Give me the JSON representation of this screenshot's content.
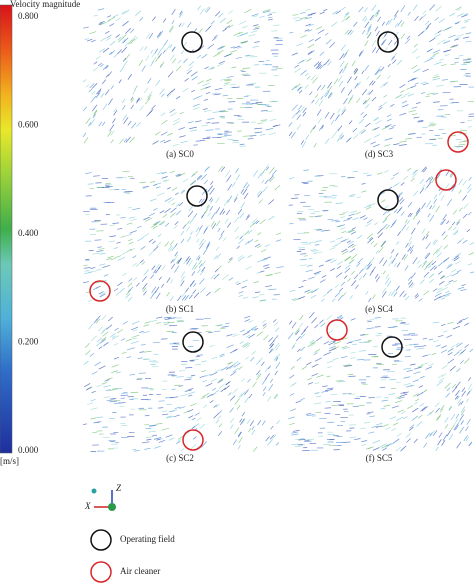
{
  "colorbar": {
    "title": "Velocity magnitude",
    "unit": "[m/s]",
    "ticks": [
      "0.800",
      "0.600",
      "0.400",
      "0.200",
      "0.000"
    ]
  },
  "panels": [
    "(a) SC0",
    "(d) SC3",
    "(b) SC1",
    "(e) SC4",
    "(c) SC2",
    "(f) SC5"
  ],
  "axes": {
    "z": "Z",
    "x": "X"
  },
  "legend": [
    "Operating field",
    "Air cleaner"
  ]
}
